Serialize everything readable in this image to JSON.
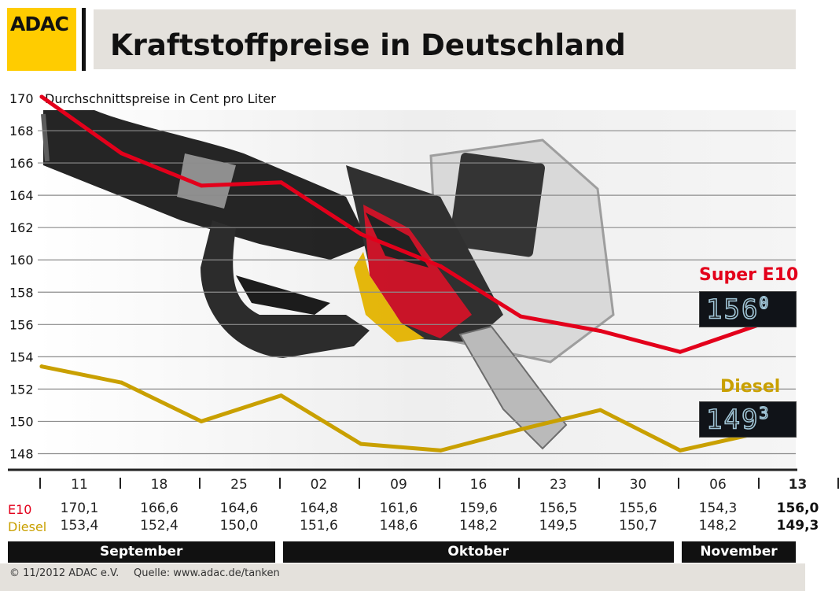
{
  "header": {
    "logo_text": "ADAC",
    "title": "Kraftstoffpreise in Deutschland"
  },
  "chart_data": {
    "type": "line",
    "title": "Kraftstoffpreise in Deutschland",
    "ylabel": "Durchschnittspreise in Cent pro Liter",
    "ylim": [
      147,
      170
    ],
    "yticks": [
      148,
      150,
      152,
      154,
      156,
      158,
      160,
      162,
      164,
      166,
      168,
      170
    ],
    "grid": true,
    "categories": [
      "11",
      "18",
      "25",
      "02",
      "09",
      "16",
      "23",
      "30",
      "06",
      "13"
    ],
    "months": [
      {
        "label": "September",
        "span": [
          0,
          2
        ]
      },
      {
        "label": "Oktober",
        "span": [
          3,
          7
        ]
      },
      {
        "label": "November",
        "span": [
          8,
          9
        ]
      }
    ],
    "series": [
      {
        "name": "Super E10",
        "row_label": "E10",
        "color": "#e3001b",
        "values": [
          170.1,
          166.6,
          164.6,
          164.8,
          161.6,
          159.6,
          156.5,
          155.6,
          154.3,
          156.0
        ],
        "values_text": [
          "170,1",
          "166,6",
          "164,6",
          "164,8",
          "161,6",
          "159,6",
          "156,5",
          "155,6",
          "154,3",
          "156,0"
        ],
        "display_main": "156",
        "display_sup": "0"
      },
      {
        "name": "Diesel",
        "row_label": "Diesel",
        "color": "#c9a000",
        "values": [
          153.4,
          152.4,
          150.0,
          151.6,
          148.6,
          148.2,
          149.5,
          150.7,
          148.2,
          149.3
        ],
        "values_text": [
          "153,4",
          "152,4",
          "150,0",
          "151,6",
          "148,6",
          "148,2",
          "149,5",
          "150,7",
          "148,2",
          "149,3"
        ],
        "display_main": "149",
        "display_sup": "3"
      }
    ]
  },
  "footer": {
    "copyright": "© 11/2012 ADAC e.V.",
    "source": "Quelle: www.adac.de/tanken"
  }
}
